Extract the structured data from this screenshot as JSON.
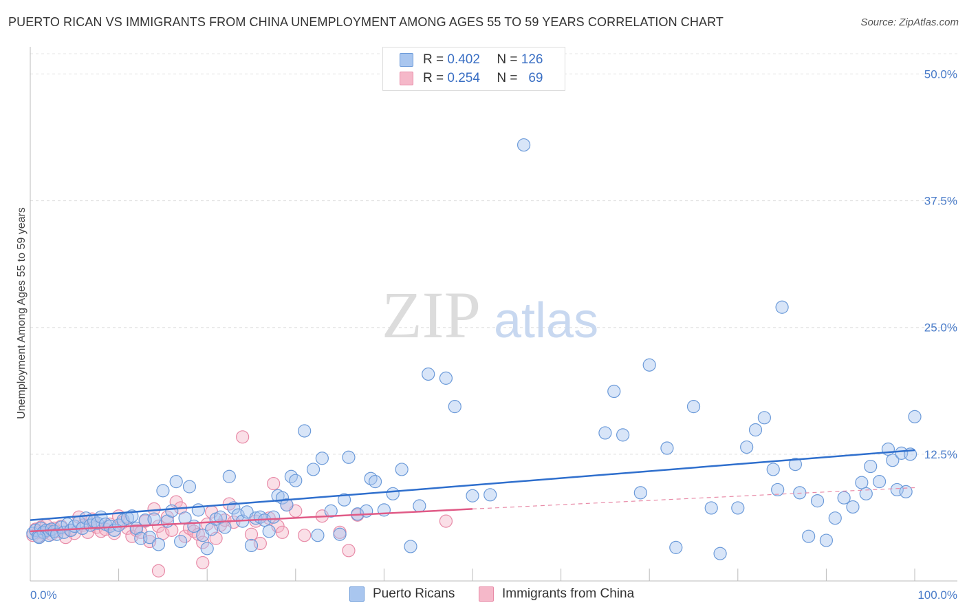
{
  "title": "PUERTO RICAN VS IMMIGRANTS FROM CHINA UNEMPLOYMENT AMONG AGES 55 TO 59 YEARS CORRELATION CHART",
  "source": "Source: ZipAtlas.com",
  "watermark": {
    "zip": "ZIP",
    "atlas": "atlas"
  },
  "legend": {
    "r_label": "R =",
    "n_label": "N =",
    "rows": [
      {
        "r": "0.402",
        "n": "126",
        "color": "#a9c6ef"
      },
      {
        "r": "0.254",
        "n": "69",
        "color": "#f5b8c9"
      }
    ]
  },
  "colors": {
    "blue_fill": "#a9c6ef",
    "blue_stroke": "#6b9ad9",
    "blue_line": "#2f6fcd",
    "pink_fill": "#f5b8c9",
    "pink_stroke": "#e88aa7",
    "pink_line": "#e05a86"
  },
  "chart_data": {
    "type": "scatter",
    "title": "PUERTO RICAN VS IMMIGRANTS FROM CHINA UNEMPLOYMENT AMONG AGES 55 TO 59 YEARS CORRELATION CHART",
    "xlabel": "",
    "ylabel": "Unemployment Among Ages 55 to 59 years",
    "xlim": [
      0,
      100
    ],
    "ylim": [
      0,
      52
    ],
    "x_tick_labels": [
      "0.0%",
      "100.0%"
    ],
    "y_ticks": [
      12.5,
      25.0,
      37.5,
      50.0
    ],
    "y_tick_labels": [
      "12.5%",
      "25.0%",
      "37.5%",
      "50.0%"
    ],
    "grid": true,
    "legend_position": "top-center",
    "series": [
      {
        "name": "Puerto Ricans",
        "color": "#a9c6ef",
        "trend": {
          "x": [
            0,
            100
          ],
          "y": [
            6.0,
            12.9
          ]
        },
        "points": [
          [
            0.3,
            4.7
          ],
          [
            0.6,
            5.0
          ],
          [
            0.9,
            4.4
          ],
          [
            1.2,
            5.2
          ],
          [
            1.5,
            4.8
          ],
          [
            1.8,
            5.0
          ],
          [
            2.1,
            4.5
          ],
          [
            2.4,
            5.1
          ],
          [
            2.7,
            4.9
          ],
          [
            3.0,
            4.6
          ],
          [
            3.5,
            5.3
          ],
          [
            3.8,
            4.8
          ],
          [
            4.2,
            5.6
          ],
          [
            4.6,
            5.0
          ],
          [
            5.0,
            5.4
          ],
          [
            5.5,
            5.8
          ],
          [
            5.9,
            5.2
          ],
          [
            6.3,
            6.2
          ],
          [
            6.8,
            5.5
          ],
          [
            7.2,
            5.9
          ],
          [
            7.6,
            5.7
          ],
          [
            8.0,
            6.3
          ],
          [
            8.5,
            5.6
          ],
          [
            9.0,
            5.4
          ],
          [
            9.5,
            5.0
          ],
          [
            10.0,
            5.5
          ],
          [
            10.5,
            6.0
          ],
          [
            11.0,
            6.2
          ],
          [
            11.5,
            6.4
          ],
          [
            12.0,
            5.2
          ],
          [
            12.5,
            4.2
          ],
          [
            13.0,
            6.0
          ],
          [
            13.5,
            4.3
          ],
          [
            14.0,
            6.1
          ],
          [
            14.5,
            3.6
          ],
          [
            15.0,
            8.9
          ],
          [
            15.5,
            5.9
          ],
          [
            16.0,
            6.9
          ],
          [
            16.5,
            9.8
          ],
          [
            17.0,
            3.9
          ],
          [
            17.5,
            6.2
          ],
          [
            18.0,
            9.3
          ],
          [
            18.5,
            5.4
          ],
          [
            19.0,
            7.0
          ],
          [
            19.5,
            4.5
          ],
          [
            20.0,
            3.2
          ],
          [
            20.5,
            5.1
          ],
          [
            21.0,
            6.1
          ],
          [
            21.5,
            6.3
          ],
          [
            22.0,
            5.3
          ],
          [
            22.5,
            10.3
          ],
          [
            23.0,
            7.2
          ],
          [
            23.5,
            6.5
          ],
          [
            24.0,
            5.9
          ],
          [
            24.5,
            6.8
          ],
          [
            25.0,
            3.5
          ],
          [
            25.5,
            6.2
          ],
          [
            26.0,
            6.3
          ],
          [
            26.5,
            6.0
          ],
          [
            27.0,
            4.9
          ],
          [
            27.5,
            6.3
          ],
          [
            28.0,
            8.4
          ],
          [
            28.5,
            8.2
          ],
          [
            29.0,
            7.5
          ],
          [
            29.5,
            10.3
          ],
          [
            30.0,
            9.9
          ],
          [
            31.0,
            14.8
          ],
          [
            32.0,
            11.0
          ],
          [
            32.5,
            4.5
          ],
          [
            33.0,
            12.1
          ],
          [
            34.0,
            6.9
          ],
          [
            35.0,
            4.6
          ],
          [
            35.5,
            8.0
          ],
          [
            36.0,
            12.2
          ],
          [
            37.0,
            6.6
          ],
          [
            38.0,
            6.9
          ],
          [
            38.5,
            10.1
          ],
          [
            39.0,
            9.8
          ],
          [
            40.0,
            7.0
          ],
          [
            41.0,
            8.6
          ],
          [
            42.0,
            11.0
          ],
          [
            43.0,
            3.4
          ],
          [
            44.0,
            7.4
          ],
          [
            45.0,
            20.4
          ],
          [
            47.0,
            20.0
          ],
          [
            48.0,
            17.2
          ],
          [
            50.0,
            8.4
          ],
          [
            52.0,
            8.5
          ],
          [
            55.8,
            43.0
          ],
          [
            65.0,
            14.6
          ],
          [
            66.0,
            18.7
          ],
          [
            67.0,
            14.4
          ],
          [
            69.0,
            8.7
          ],
          [
            70.0,
            21.3
          ],
          [
            72.0,
            13.1
          ],
          [
            73.0,
            3.3
          ],
          [
            75.0,
            17.2
          ],
          [
            77.0,
            7.2
          ],
          [
            78.0,
            2.7
          ],
          [
            80.0,
            7.2
          ],
          [
            81.0,
            13.2
          ],
          [
            82.0,
            14.9
          ],
          [
            83.0,
            16.1
          ],
          [
            84.0,
            11.0
          ],
          [
            84.5,
            9.0
          ],
          [
            85.0,
            27.0
          ],
          [
            86.5,
            11.5
          ],
          [
            87.0,
            8.7
          ],
          [
            88.0,
            4.4
          ],
          [
            89.0,
            7.9
          ],
          [
            90.0,
            4.0
          ],
          [
            91.0,
            6.2
          ],
          [
            92.0,
            8.2
          ],
          [
            93.0,
            7.3
          ],
          [
            94.0,
            9.7
          ],
          [
            94.5,
            8.6
          ],
          [
            95.0,
            11.3
          ],
          [
            96.0,
            9.8
          ],
          [
            97.0,
            13.0
          ],
          [
            97.5,
            11.9
          ],
          [
            98.0,
            9.0
          ],
          [
            98.5,
            12.6
          ],
          [
            99.0,
            8.8
          ],
          [
            99.5,
            12.5
          ],
          [
            100.0,
            16.2
          ],
          [
            1.0,
            4.3
          ]
        ]
      },
      {
        "name": "Immigrants from China",
        "color": "#f5b8c9",
        "trend": {
          "x": [
            0,
            50
          ],
          "y": [
            4.9,
            7.1
          ],
          "dashed_to": [
            100,
            9.2
          ]
        },
        "points": [
          [
            0.3,
            4.5
          ],
          [
            0.6,
            5.1
          ],
          [
            0.9,
            4.8
          ],
          [
            1.2,
            5.3
          ],
          [
            1.5,
            4.7
          ],
          [
            1.8,
            5.5
          ],
          [
            2.1,
            5.0
          ],
          [
            2.4,
            4.6
          ],
          [
            2.7,
            5.2
          ],
          [
            3.0,
            4.9
          ],
          [
            3.5,
            5.4
          ],
          [
            4.0,
            4.3
          ],
          [
            4.5,
            5.0
          ],
          [
            5.0,
            4.7
          ],
          [
            5.5,
            6.3
          ],
          [
            6.0,
            5.5
          ],
          [
            6.5,
            4.8
          ],
          [
            7.0,
            6.1
          ],
          [
            7.5,
            5.3
          ],
          [
            8.0,
            4.9
          ],
          [
            8.5,
            5.1
          ],
          [
            9.0,
            5.6
          ],
          [
            9.5,
            4.7
          ],
          [
            10.0,
            6.4
          ],
          [
            10.5,
            5.8
          ],
          [
            11.0,
            5.2
          ],
          [
            11.5,
            4.4
          ],
          [
            12.0,
            5.0
          ],
          [
            12.5,
            4.8
          ],
          [
            13.0,
            5.9
          ],
          [
            13.5,
            3.9
          ],
          [
            14.0,
            7.1
          ],
          [
            14.5,
            5.4
          ],
          [
            15.0,
            4.7
          ],
          [
            15.5,
            6.3
          ],
          [
            16.0,
            5.0
          ],
          [
            16.5,
            7.8
          ],
          [
            17.0,
            7.2
          ],
          [
            17.5,
            4.4
          ],
          [
            18.0,
            5.2
          ],
          [
            18.5,
            4.9
          ],
          [
            19.0,
            4.6
          ],
          [
            19.5,
            3.8
          ],
          [
            20.0,
            5.6
          ],
          [
            20.5,
            6.8
          ],
          [
            21.0,
            4.2
          ],
          [
            21.5,
            5.5
          ],
          [
            22.0,
            6.0
          ],
          [
            22.5,
            7.6
          ],
          [
            23.0,
            5.8
          ],
          [
            24.0,
            14.2
          ],
          [
            25.0,
            4.6
          ],
          [
            25.5,
            5.9
          ],
          [
            26.0,
            3.7
          ],
          [
            27.0,
            6.2
          ],
          [
            27.5,
            9.6
          ],
          [
            28.0,
            5.4
          ],
          [
            28.5,
            4.8
          ],
          [
            29.0,
            7.5
          ],
          [
            30.0,
            6.9
          ],
          [
            31.0,
            4.5
          ],
          [
            33.0,
            6.4
          ],
          [
            35.0,
            4.8
          ],
          [
            36.0,
            3.0
          ],
          [
            37.0,
            6.5
          ],
          [
            47.0,
            5.9
          ],
          [
            14.5,
            1.0
          ],
          [
            19.5,
            1.8
          ],
          [
            1.0,
            4.4
          ]
        ]
      }
    ],
    "x_axis_ticks_minor": [
      0,
      10,
      20,
      30,
      40,
      50,
      60,
      70,
      80,
      90,
      100
    ]
  },
  "bottom_legend": [
    {
      "label": "Puerto Ricans",
      "color": "#a9c6ef"
    },
    {
      "label": "Immigrants from China",
      "color": "#f5b8c9"
    }
  ]
}
